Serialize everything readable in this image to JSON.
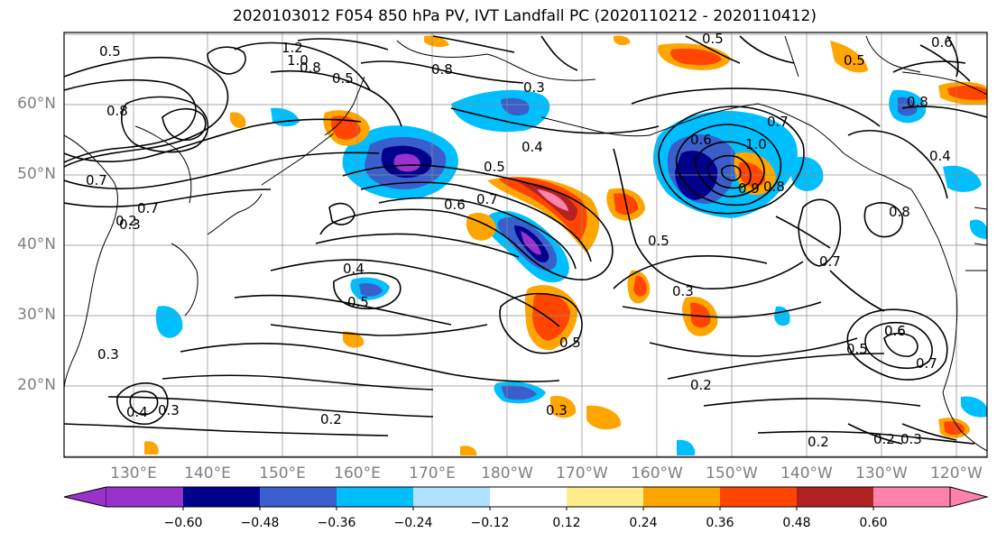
{
  "title": "2020103012 F054 850 hPa PV, IVT Landfall PC (2020110212 - 2020110412)",
  "map": {
    "lat_labels": [
      "60°N",
      "50°N",
      "40°N",
      "30°N",
      "20°N"
    ],
    "lon_labels": [
      "130°E",
      "140°E",
      "150°E",
      "160°E",
      "170°E",
      "180°W",
      "170°W",
      "160°W",
      "150°W",
      "140°W",
      "130°W",
      "120°W"
    ],
    "contour_labels": [
      "0.5",
      "1.2",
      "1.0",
      "0.8",
      "0.5",
      "0.8",
      "0.3",
      "0.5",
      "0.6",
      "0.7",
      "0.8",
      "0.4",
      "0.5",
      "0.6",
      "0.7",
      "0.5",
      "0.6",
      "0.7",
      "1.0",
      "0.9",
      "0.8",
      "0.7",
      "0.4",
      "0.3",
      "0.2",
      "0.5",
      "0.6",
      "0.7",
      "0.8",
      "0.4",
      "0.5",
      "0.3",
      "0.3",
      "0.5",
      "0.2",
      "0.2",
      "0.3",
      "0.4",
      "0.3",
      "0.2",
      "0.6",
      "0.7",
      "0.5",
      "0.8",
      "0.3",
      "0.2"
    ]
  },
  "colorbar": {
    "ticks": [
      "−0.60",
      "−0.48",
      "−0.36",
      "−0.24",
      "−0.12",
      "0.12",
      "0.24",
      "0.36",
      "0.48",
      "0.60"
    ],
    "colors": [
      "#9932cc",
      "#00008b",
      "#3a5fcd",
      "#00bfff",
      "#b0e2ff",
      "#ffffff",
      "#ffec8b",
      "#ffa500",
      "#ff4500",
      "#b22222",
      "#ff82ab"
    ]
  }
}
